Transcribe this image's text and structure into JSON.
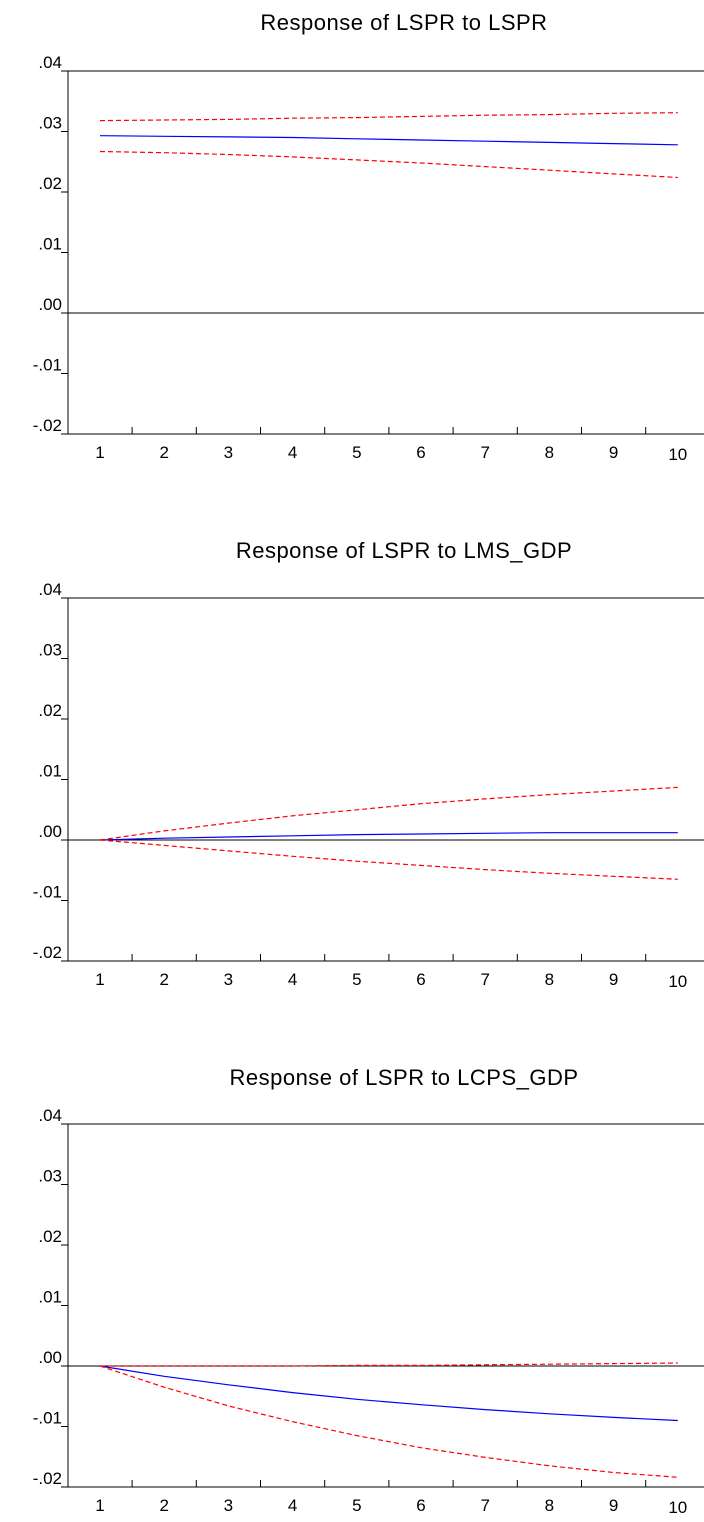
{
  "colors": {
    "response": "#0000ff",
    "confidence_band": "#ff0000",
    "axis": "#000000",
    "background": "#ffffff"
  },
  "chart_data": [
    {
      "type": "line",
      "title": "Response of LSPR to LSPR",
      "x": [
        1,
        2,
        3,
        4,
        5,
        6,
        7,
        8,
        9,
        10
      ],
      "xticklabels": [
        "1",
        "2",
        "3",
        "4",
        "5",
        "6",
        "7",
        "8",
        "9",
        "10"
      ],
      "yticks": [
        0.04,
        0.03,
        0.02,
        0.01,
        0.0,
        -0.01,
        -0.02
      ],
      "yticklabels": [
        ".04",
        ".03",
        ".02",
        ".01",
        ".00",
        "-.01",
        "-.02"
      ],
      "ylim": [
        -0.02,
        0.04
      ],
      "zero_line": true,
      "grid": false,
      "series": [
        {
          "role": "response",
          "style": "solid",
          "values": [
            0.0293,
            0.0292,
            0.0291,
            0.029,
            0.0288,
            0.0286,
            0.0284,
            0.0282,
            0.028,
            0.0278
          ]
        },
        {
          "role": "upper_band",
          "style": "dashed",
          "values": [
            0.0318,
            0.0319,
            0.032,
            0.0322,
            0.0323,
            0.0325,
            0.0327,
            0.0328,
            0.033,
            0.0331
          ]
        },
        {
          "role": "lower_band",
          "style": "dashed",
          "values": [
            0.0267,
            0.0265,
            0.0262,
            0.0258,
            0.0253,
            0.0248,
            0.0242,
            0.0236,
            0.023,
            0.0224
          ]
        }
      ]
    },
    {
      "type": "line",
      "title": "Response of LSPR to LMS_GDP",
      "x": [
        1,
        2,
        3,
        4,
        5,
        6,
        7,
        8,
        9,
        10
      ],
      "xticklabels": [
        "1",
        "2",
        "3",
        "4",
        "5",
        "6",
        "7",
        "8",
        "9",
        "10"
      ],
      "yticks": [
        0.04,
        0.03,
        0.02,
        0.01,
        0.0,
        -0.01,
        -0.02
      ],
      "yticklabels": [
        ".04",
        ".03",
        ".02",
        ".01",
        ".00",
        "-.01",
        "-.02"
      ],
      "ylim": [
        -0.02,
        0.04
      ],
      "zero_line": true,
      "grid": false,
      "series": [
        {
          "role": "response",
          "style": "solid",
          "values": [
            0.0,
            0.0003,
            0.0005,
            0.0007,
            0.0009,
            0.001,
            0.0011,
            0.0012,
            0.0012,
            0.0012
          ]
        },
        {
          "role": "upper_band",
          "style": "dashed",
          "values": [
            0.0,
            0.0015,
            0.0028,
            0.004,
            0.005,
            0.006,
            0.0068,
            0.0075,
            0.0081,
            0.0087
          ]
        },
        {
          "role": "lower_band",
          "style": "dashed",
          "values": [
            0.0,
            -0.0009,
            -0.0018,
            -0.0027,
            -0.0035,
            -0.0042,
            -0.0049,
            -0.0055,
            -0.006,
            -0.0065
          ]
        }
      ]
    },
    {
      "type": "line",
      "title": "Response of LSPR to LCPS_GDP",
      "x": [
        1,
        2,
        3,
        4,
        5,
        6,
        7,
        8,
        9,
        10
      ],
      "xticklabels": [
        "1",
        "2",
        "3",
        "4",
        "5",
        "6",
        "7",
        "8",
        "9",
        "10"
      ],
      "yticks": [
        0.04,
        0.03,
        0.02,
        0.01,
        0.0,
        -0.01,
        -0.02
      ],
      "yticklabels": [
        ".04",
        ".03",
        ".02",
        ".01",
        ".00",
        "-.01",
        "-.02"
      ],
      "ylim": [
        -0.02,
        0.04
      ],
      "zero_line": true,
      "grid": false,
      "series": [
        {
          "role": "response",
          "style": "solid",
          "values": [
            0.0,
            -0.0017,
            -0.0031,
            -0.0044,
            -0.0055,
            -0.0064,
            -0.0072,
            -0.0079,
            -0.0085,
            -0.009
          ]
        },
        {
          "role": "upper_band",
          "style": "dashed",
          "values": [
            0.0,
            0.0,
            0.0,
            0.0,
            0.0001,
            0.0001,
            0.0002,
            0.0003,
            0.0004,
            0.0005
          ]
        },
        {
          "role": "lower_band",
          "style": "dashed",
          "values": [
            0.0,
            -0.0035,
            -0.0066,
            -0.0092,
            -0.0115,
            -0.0135,
            -0.0151,
            -0.0165,
            -0.0176,
            -0.0184
          ]
        }
      ]
    }
  ]
}
